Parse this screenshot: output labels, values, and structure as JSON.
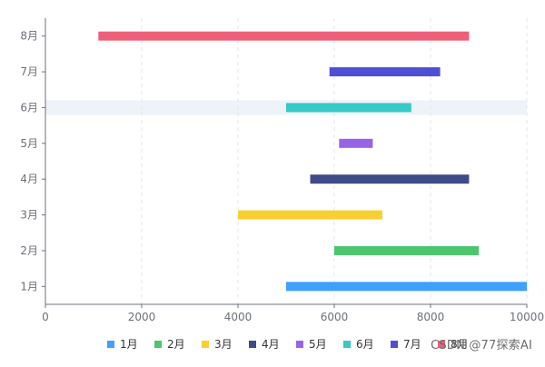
{
  "chart_data": {
    "type": "bar",
    "orientation": "horizontal-range",
    "title": "",
    "xlabel": "",
    "ylabel": "",
    "xlim": [
      0,
      10000
    ],
    "x_ticks": [
      0,
      2000,
      4000,
      6000,
      8000,
      10000
    ],
    "grid": "vertical dashed",
    "categories": [
      "1月",
      "2月",
      "3月",
      "4月",
      "5月",
      "6月",
      "7月",
      "8月"
    ],
    "series": [
      {
        "name": "1月",
        "color": "#3fa0ff",
        "start": 5000,
        "end": 10000
      },
      {
        "name": "2月",
        "color": "#4cc56e",
        "start": 6000,
        "end": 9000
      },
      {
        "name": "3月",
        "color": "#f8d032",
        "start": 4000,
        "end": 7000
      },
      {
        "name": "4月",
        "color": "#3f4b87",
        "start": 5500,
        "end": 8800
      },
      {
        "name": "5月",
        "color": "#9864e6",
        "start": 6100,
        "end": 6800
      },
      {
        "name": "6月",
        "color": "#36c9c6",
        "start": 5000,
        "end": 7600
      },
      {
        "name": "7月",
        "color": "#4f4fd6",
        "start": 5900,
        "end": 8200
      },
      {
        "name": "8月",
        "color": "#ee5f79",
        "start": 1100,
        "end": 8800
      }
    ],
    "highlighted_category": "6月",
    "legend_position": "bottom"
  },
  "watermark": "CSDN @77探索AI"
}
